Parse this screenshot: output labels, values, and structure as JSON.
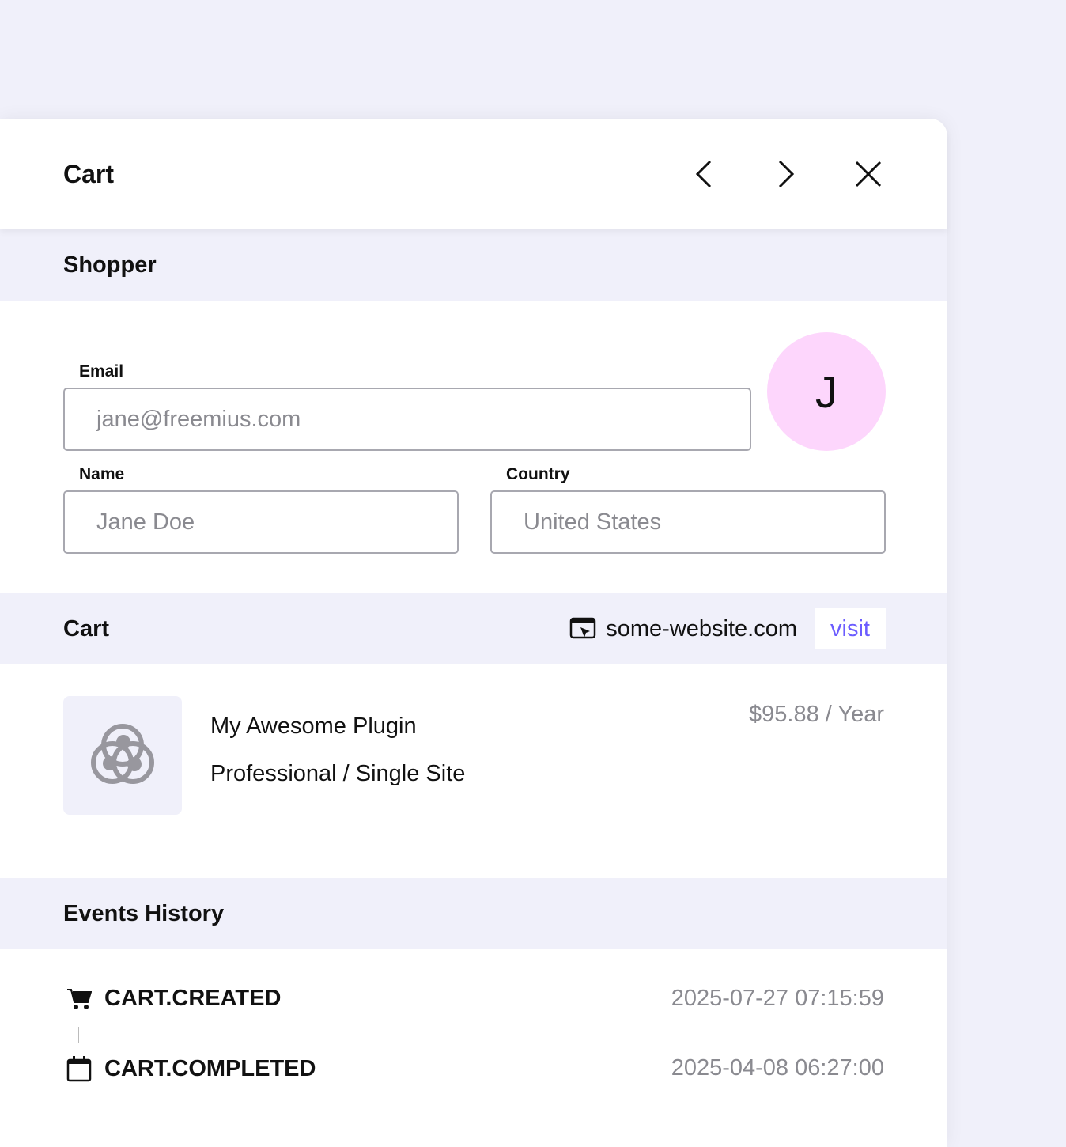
{
  "header": {
    "title": "Cart",
    "prev_icon": "chevron-left-icon",
    "next_icon": "chevron-right-icon",
    "close_icon": "close-icon"
  },
  "shopper": {
    "section_title": "Shopper",
    "email_label": "Email",
    "email_value": "jane@freemius.com",
    "name_label": "Name",
    "name_value": "Jane Doe",
    "country_label": "Country",
    "country_value": "United States",
    "avatar_initial": "J",
    "avatar_color": "#fdd6fc"
  },
  "cart": {
    "section_title": "Cart",
    "website": "some-website.com",
    "visit_label": "visit",
    "product_name": "My Awesome Plugin",
    "plan": "Professional / Single Site",
    "price": "$95.88 / Year",
    "accent": "#6b5cff"
  },
  "events": {
    "section_title": "Events History",
    "items": [
      {
        "name": "CART.CREATED",
        "date": "2025-07-27 07:15:59",
        "icon": "cart-icon"
      },
      {
        "name": "CART.COMPLETED",
        "date": "2025-04-08 06:27:00",
        "icon": "calendar-icon"
      }
    ]
  }
}
